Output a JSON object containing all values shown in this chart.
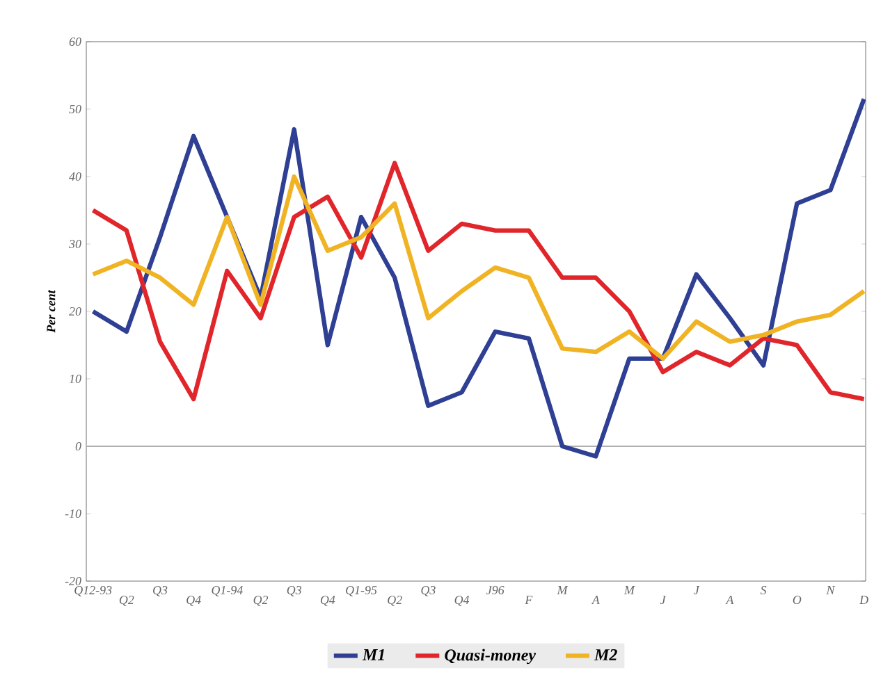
{
  "chart_data": {
    "type": "line",
    "ylabel": "Per cent",
    "categories": [
      "Q12-93",
      "Q2",
      "Q3",
      "Q4",
      "Q1-94",
      "Q2",
      "Q3",
      "Q4",
      "Q1-95",
      "Q2",
      "Q3",
      "Q4",
      "J96",
      "F",
      "M",
      "A",
      "M",
      "J",
      "J",
      "A",
      "S",
      "O",
      "N",
      "D"
    ],
    "series": [
      {
        "name": "M1",
        "color": "#2e3f94",
        "values": [
          20,
          17,
          31,
          46,
          34,
          22,
          47,
          15,
          34,
          25,
          6,
          8,
          17,
          16,
          0,
          -1.5,
          13,
          13,
          25.5,
          19,
          12,
          36,
          38,
          51.5
        ]
      },
      {
        "name": "Quasi-money",
        "color": "#e0262b",
        "values": [
          35,
          32,
          15.5,
          7,
          26,
          19,
          34,
          37,
          28,
          42,
          29,
          33,
          32,
          32,
          25,
          25,
          20,
          11,
          14,
          12,
          16,
          15,
          8,
          7
        ]
      },
      {
        "name": "M2",
        "color": "#f0b323",
        "values": [
          25.5,
          27.5,
          25,
          21,
          34,
          21,
          40,
          29,
          31,
          36,
          19,
          23,
          26.5,
          25,
          14.5,
          14,
          17,
          13,
          18.5,
          15.5,
          16.5,
          18.5,
          19.5,
          23
        ]
      }
    ],
    "ylim": [
      -20,
      60
    ],
    "yticks": [
      -20,
      -10,
      0,
      10,
      20,
      30,
      40,
      50,
      60
    ],
    "ref_lines": [
      {
        "axis": "y",
        "value": 0,
        "color": "#b0b0b0"
      }
    ],
    "grid": false,
    "legend": "bottom",
    "marker": "none",
    "line_style": "solid"
  }
}
